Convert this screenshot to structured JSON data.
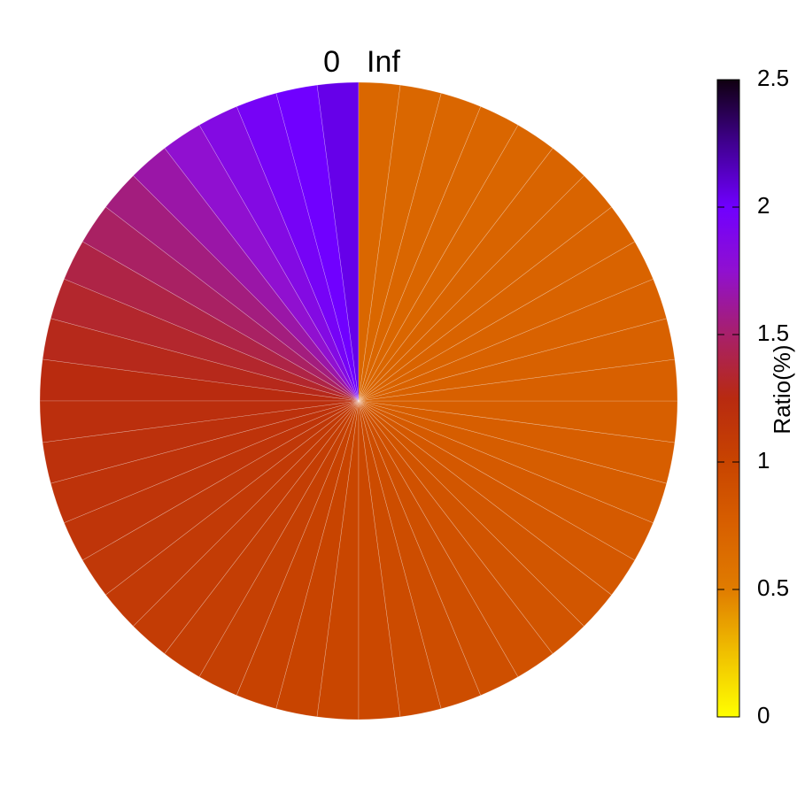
{
  "chart_data": {
    "type": "polar_heatmap",
    "angle_start_label": "0",
    "angle_end_label": "Inf",
    "values": [
      2.05,
      2.0,
      1.95,
      1.85,
      1.75,
      1.65,
      1.55,
      1.48,
      1.4,
      1.33,
      1.28,
      1.24,
      1.2,
      1.18,
      1.16,
      1.14,
      1.12,
      1.1,
      1.08,
      1.06,
      1.04,
      1.02,
      1.0,
      0.98,
      0.96,
      0.94,
      0.92,
      0.9,
      0.88,
      0.86,
      0.84,
      0.82,
      0.8,
      0.78,
      0.77,
      0.76,
      0.75,
      0.74,
      0.73,
      0.72,
      0.72,
      0.71,
      0.71,
      0.7,
      0.7,
      0.7,
      0.69,
      0.69
    ],
    "colorbar": {
      "label": "Ratio(%)",
      "lim": [
        0,
        2.5
      ],
      "ticks": [
        0,
        0.5,
        1,
        1.5,
        2,
        2.5
      ],
      "colors": [
        "#ffff00",
        "#f0c000",
        "#e07c00",
        "#d86000",
        "#c84400",
        "#b82a10",
        "#a8206a",
        "#9010d0",
        "#7000ff",
        "#400090",
        "#100010"
      ]
    }
  }
}
